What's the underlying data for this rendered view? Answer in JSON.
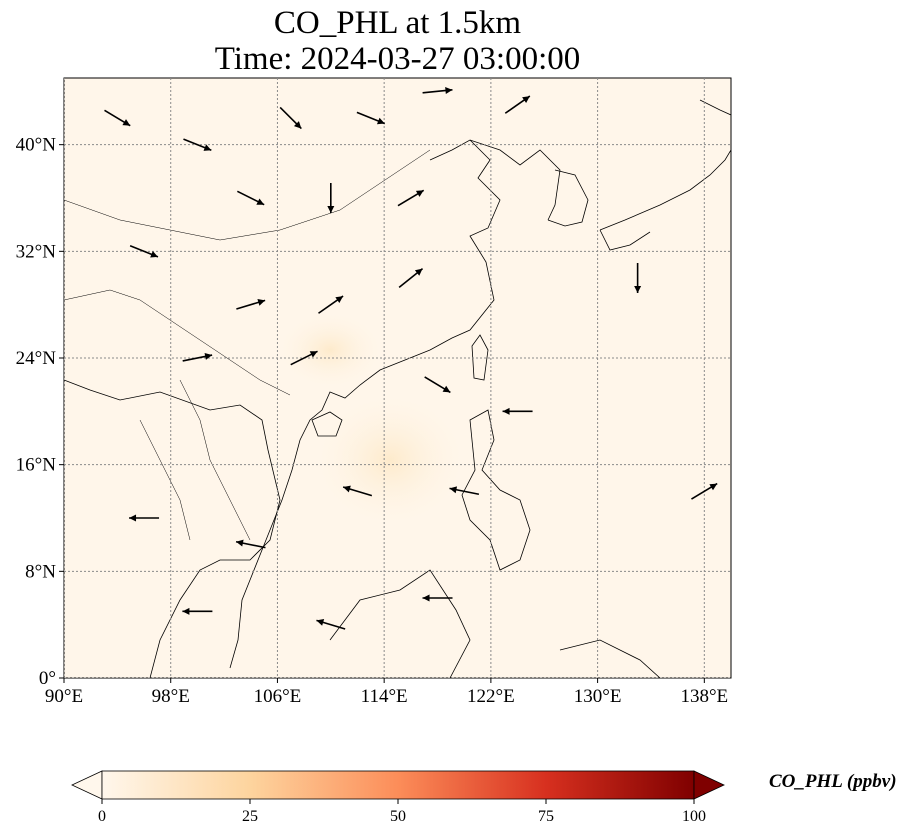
{
  "title_line1": "CO_PHL at 1.5km",
  "title_line2": "Time: 2024-03-27 03:00:00",
  "colorbar": {
    "label": "CO_PHL (ppbv)",
    "ticks": [
      "0",
      "25",
      "50",
      "75",
      "100"
    ],
    "colormap": "OrRd",
    "range": [
      0,
      100
    ],
    "extend": "both"
  },
  "colors": {
    "background_field": "#fff6ea",
    "land_outline": "#000000",
    "gridline": "#8a8a8a",
    "arrow": "#000000",
    "colormap_stops": [
      "#fff7ec",
      "#fdd49e",
      "#fc8d59",
      "#d7301f",
      "#7f0000"
    ]
  },
  "chart_data": {
    "type": "heatmap",
    "variable": "CO_PHL",
    "units": "ppbv",
    "level": "1.5km",
    "time": "2024-03-27 03:00:00",
    "xlim": [
      90,
      140
    ],
    "ylim": [
      0,
      45
    ],
    "x_ticks": [
      "90°E",
      "98°E",
      "106°E",
      "114°E",
      "122°E",
      "130°E",
      "138°E"
    ],
    "x_tick_values": [
      90,
      98,
      106,
      114,
      122,
      130,
      138
    ],
    "y_ticks": [
      "0°",
      "8°N",
      "16°N",
      "24°N",
      "32°N",
      "40°N"
    ],
    "y_tick_values": [
      0,
      8,
      16,
      24,
      32,
      40
    ],
    "grid": true,
    "field_summary": "near-zero concentrations everywhere, faint plume over South China Sea",
    "wind_vectors_sample": [
      {
        "lon": 94,
        "lat": 42,
        "u": 1,
        "v": -0.6
      },
      {
        "lon": 100,
        "lat": 40,
        "u": 1,
        "v": -0.4
      },
      {
        "lon": 107,
        "lat": 42,
        "u": 1,
        "v": -1
      },
      {
        "lon": 113,
        "lat": 42,
        "u": 1,
        "v": -0.4
      },
      {
        "lon": 118,
        "lat": 44,
        "u": 1,
        "v": 0.1
      },
      {
        "lon": 124,
        "lat": 43,
        "u": 1,
        "v": 0.7
      },
      {
        "lon": 104,
        "lat": 36,
        "u": 1,
        "v": -0.5
      },
      {
        "lon": 110,
        "lat": 36,
        "u": 0,
        "v": -1
      },
      {
        "lon": 116,
        "lat": 36,
        "u": 1,
        "v": 0.6
      },
      {
        "lon": 96,
        "lat": 32,
        "u": 1,
        "v": -0.4
      },
      {
        "lon": 104,
        "lat": 28,
        "u": 1,
        "v": 0.3
      },
      {
        "lon": 110,
        "lat": 28,
        "u": 1,
        "v": 0.7
      },
      {
        "lon": 116,
        "lat": 30,
        "u": 1,
        "v": 0.8
      },
      {
        "lon": 100,
        "lat": 24,
        "u": 1,
        "v": 0.2
      },
      {
        "lon": 108,
        "lat": 24,
        "u": 1,
        "v": 0.5
      },
      {
        "lon": 118,
        "lat": 22,
        "u": 1,
        "v": -0.6
      },
      {
        "lon": 124,
        "lat": 20,
        "u": -1,
        "v": 0
      },
      {
        "lon": 133,
        "lat": 30,
        "u": 0,
        "v": -1
      },
      {
        "lon": 96,
        "lat": 12,
        "u": -1,
        "v": 0
      },
      {
        "lon": 104,
        "lat": 10,
        "u": -1,
        "v": 0.2
      },
      {
        "lon": 112,
        "lat": 14,
        "u": -1,
        "v": 0.3
      },
      {
        "lon": 120,
        "lat": 14,
        "u": -1,
        "v": 0.2
      },
      {
        "lon": 100,
        "lat": 5,
        "u": -1,
        "v": 0
      },
      {
        "lon": 110,
        "lat": 4,
        "u": -1,
        "v": 0.3
      },
      {
        "lon": 118,
        "lat": 6,
        "u": -1,
        "v": 0
      },
      {
        "lon": 138,
        "lat": 14,
        "u": 1,
        "v": 0.6
      }
    ]
  }
}
